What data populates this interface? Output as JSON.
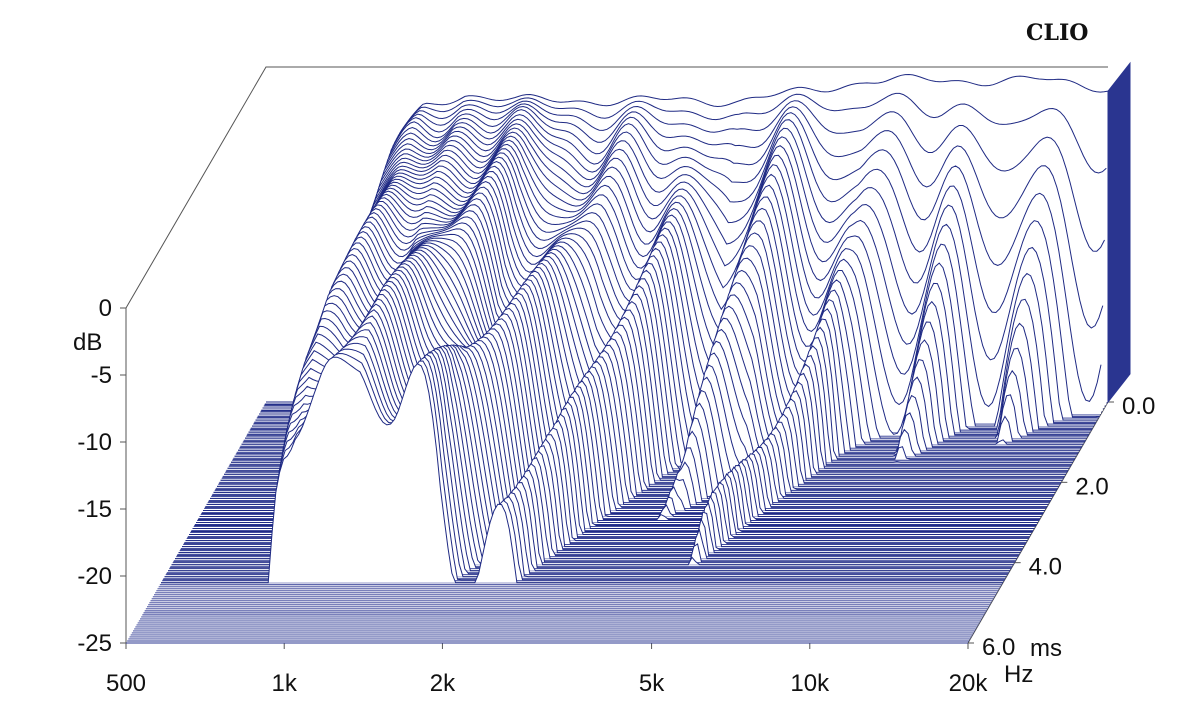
{
  "chart_data": {
    "type": "waterfall",
    "brand": "CLIO",
    "colors": {
      "trace": "#1f2a84",
      "floor": "#2a3590",
      "frame": "#555555",
      "text": "#111111"
    },
    "x_axis": {
      "scale": "log",
      "range": [
        500,
        20000
      ],
      "unit": "Hz",
      "ticks": [
        {
          "value": 500,
          "label": "500"
        },
        {
          "value": 1000,
          "label": "1k"
        },
        {
          "value": 2000,
          "label": "2k"
        },
        {
          "value": 5000,
          "label": "5k"
        },
        {
          "value": 10000,
          "label": "10k"
        },
        {
          "value": 20000,
          "label": "20k"
        }
      ]
    },
    "y_axis": {
      "label": "dB",
      "range": [
        -25,
        0
      ],
      "ticks": [
        {
          "value": 0,
          "label": "0"
        },
        {
          "value": -5,
          "label": "-5"
        },
        {
          "value": -10,
          "label": "-10"
        },
        {
          "value": -15,
          "label": "-15"
        },
        {
          "value": -20,
          "label": "-20"
        },
        {
          "value": -25,
          "label": "-25"
        }
      ]
    },
    "time_axis": {
      "unit": "ms",
      "range": [
        0,
        6
      ],
      "ticks": [
        {
          "value": 0,
          "label": "0.0"
        },
        {
          "value": 2,
          "label": "2.0"
        },
        {
          "value": 4,
          "label": "4.0"
        },
        {
          "value": 6,
          "label": "6.0"
        }
      ]
    },
    "slice_count": 120,
    "response_db": [
      [
        500,
        -25
      ],
      [
        700,
        -25
      ],
      [
        780,
        -20
      ],
      [
        820,
        -10
      ],
      [
        900,
        -5
      ],
      [
        1000,
        -3
      ],
      [
        1200,
        -2
      ],
      [
        1500,
        -2.5
      ],
      [
        2000,
        -2.5
      ],
      [
        3000,
        -2.5
      ],
      [
        4000,
        -2.5
      ],
      [
        5000,
        -2
      ],
      [
        7000,
        -1
      ],
      [
        10000,
        -1
      ],
      [
        15000,
        -1
      ],
      [
        20000,
        -1.5
      ]
    ],
    "decay_ms": [
      [
        500,
        0.5
      ],
      [
        780,
        1.0
      ],
      [
        850,
        4.0
      ],
      [
        1000,
        3.2
      ],
      [
        1200,
        4.3
      ],
      [
        1400,
        3.0
      ],
      [
        1700,
        1.7
      ],
      [
        2500,
        0.9
      ],
      [
        4000,
        0.5
      ],
      [
        5000,
        0.7
      ],
      [
        7000,
        0.3
      ],
      [
        20000,
        0.1
      ]
    ]
  }
}
